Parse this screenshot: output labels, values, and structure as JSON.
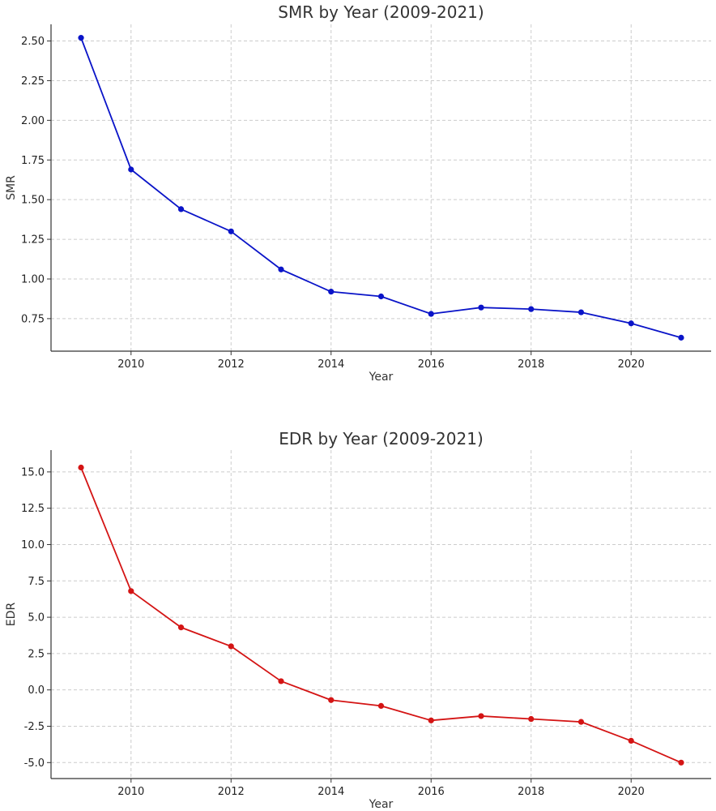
{
  "chart_data": [
    {
      "type": "line",
      "title": "SMR by Year (2009-2021)",
      "xlabel": "Year",
      "ylabel": "SMR",
      "color": "#0a14c8",
      "grid": true,
      "x": [
        2009,
        2010,
        2011,
        2012,
        2013,
        2014,
        2015,
        2016,
        2017,
        2018,
        2019,
        2020,
        2021
      ],
      "values": [
        2.52,
        1.69,
        1.44,
        1.3,
        1.06,
        0.92,
        0.89,
        0.78,
        0.82,
        0.81,
        0.79,
        0.72,
        0.63
      ],
      "xlim": [
        2008.4,
        2021.6
      ],
      "ylim": [
        0.545,
        2.605
      ],
      "xticks": [
        2010,
        2012,
        2014,
        2016,
        2018,
        2020
      ],
      "xtick_labels": [
        "2010",
        "2012",
        "2014",
        "2016",
        "2018",
        "2020"
      ],
      "yticks": [
        0.75,
        1.0,
        1.25,
        1.5,
        1.75,
        2.0,
        2.25,
        2.5
      ],
      "ytick_labels": [
        "0.75",
        "1.00",
        "1.25",
        "1.50",
        "1.75",
        "2.00",
        "2.25",
        "2.50"
      ]
    },
    {
      "type": "line",
      "title": "EDR by Year (2009-2021)",
      "xlabel": "Year",
      "ylabel": "EDR",
      "color": "#d41414",
      "grid": true,
      "x": [
        2009,
        2010,
        2011,
        2012,
        2013,
        2014,
        2015,
        2016,
        2017,
        2018,
        2019,
        2020,
        2021
      ],
      "values": [
        15.3,
        6.8,
        4.3,
        3.0,
        0.6,
        -0.7,
        -1.1,
        -2.1,
        -1.8,
        -2.0,
        -2.2,
        -3.5,
        -5.0
      ],
      "xlim": [
        2008.4,
        2021.6
      ],
      "ylim": [
        -6.1,
        16.5
      ],
      "xticks": [
        2010,
        2012,
        2014,
        2016,
        2018,
        2020
      ],
      "xtick_labels": [
        "2010",
        "2012",
        "2014",
        "2016",
        "2018",
        "2020"
      ],
      "yticks": [
        -5.0,
        -2.5,
        0.0,
        2.5,
        5.0,
        7.5,
        10.0,
        12.5,
        15.0
      ],
      "ytick_labels": [
        "-5.0",
        "-2.5",
        "0.0",
        "2.5",
        "5.0",
        "7.5",
        "10.0",
        "12.5",
        "15.0"
      ]
    }
  ]
}
